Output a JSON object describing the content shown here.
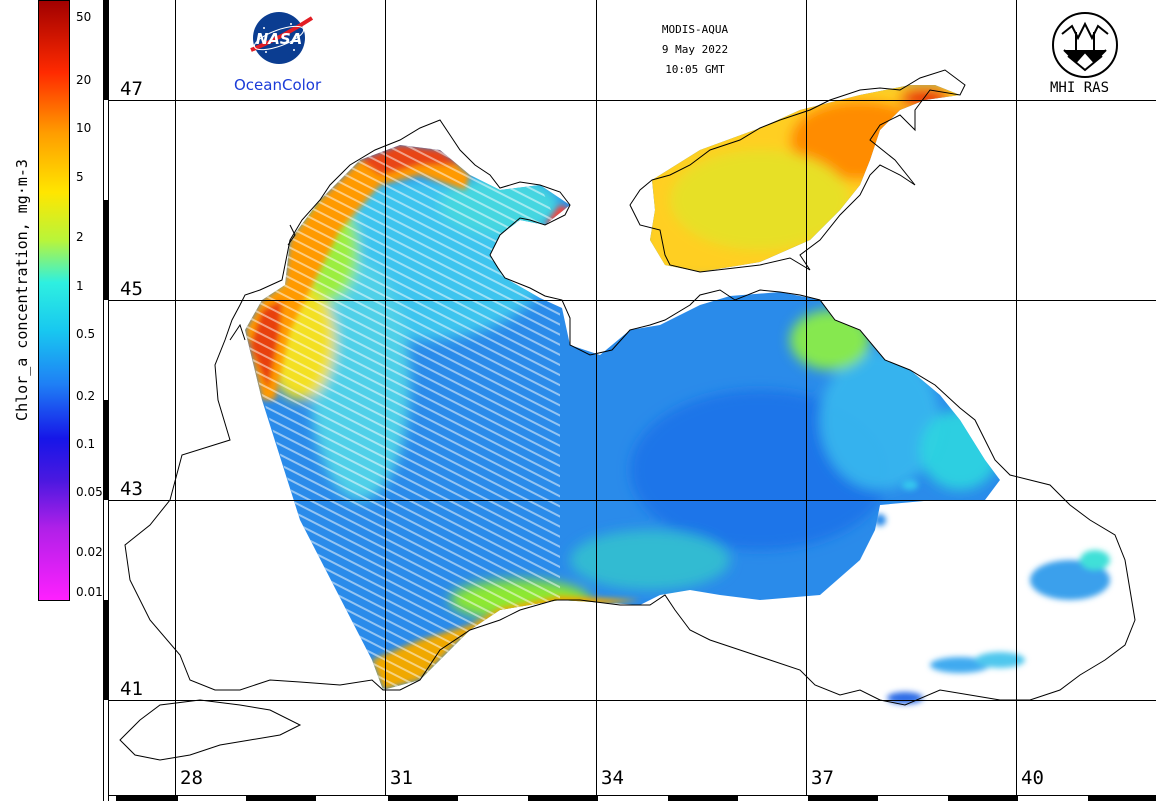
{
  "header": {
    "sensor": "MODIS-AQUA",
    "date": "9 May 2022",
    "time": "10:05 GMT"
  },
  "logos": {
    "nasa_text": "NASA",
    "ocean_color": "OceanColor",
    "mhi": "MHI RAS"
  },
  "colorbar": {
    "title": "Chlor_a concentration, mg·m-3",
    "ticks": [
      "50",
      "20",
      "10",
      "5",
      "2",
      "1",
      "0.5",
      "0.2",
      "0.1",
      "0.05",
      "0.02",
      "0.01"
    ],
    "scale": "log"
  },
  "map": {
    "latitudes": [
      "47",
      "45",
      "43",
      "41"
    ],
    "longitudes": [
      "28",
      "31",
      "34",
      "37",
      "40"
    ],
    "colors": {
      "land": "#ffffff",
      "coast": "#000000",
      "grid": "#000000",
      "open_sea": "#2a8bea",
      "shelf": "#4fc3f7",
      "coastal_high": "#ffb300",
      "river_mouth": "#e53935"
    }
  }
}
